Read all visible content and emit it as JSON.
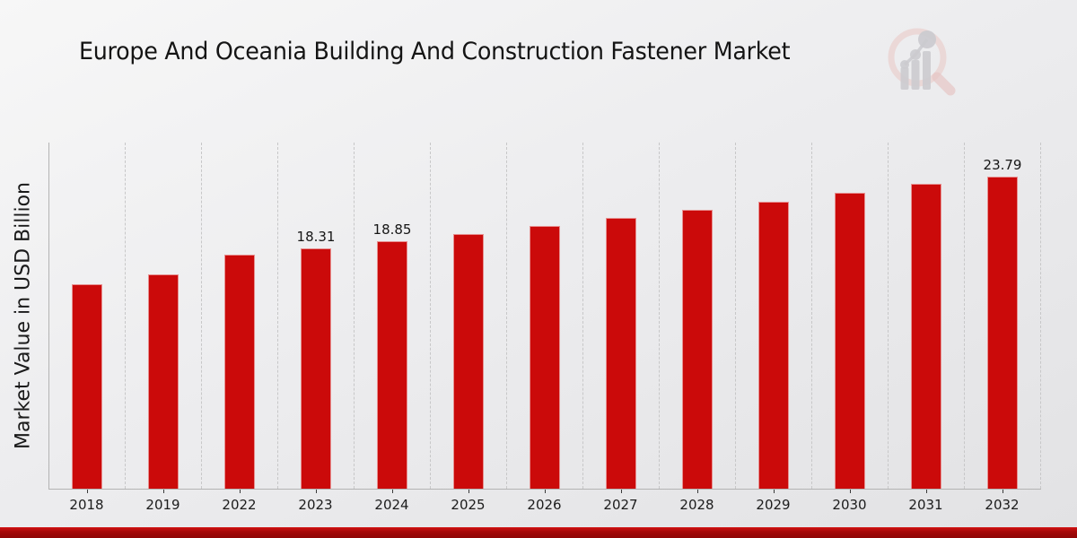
{
  "title": "Europe And Oceania Building And Construction Fastener Market",
  "y_axis_label": "Market Value in USD Billion",
  "logo_name": "market-research-magnifier-logo",
  "chart_data": {
    "type": "bar",
    "title": "Europe And Oceania Building And Construction Fastener Market",
    "xlabel": "",
    "ylabel": "Market Value in USD Billion",
    "categories": [
      "2018",
      "2019",
      "2022",
      "2023",
      "2024",
      "2025",
      "2026",
      "2027",
      "2028",
      "2029",
      "2030",
      "2031",
      "2032"
    ],
    "values": [
      15.6,
      16.33,
      17.83,
      18.31,
      18.85,
      19.45,
      20.02,
      20.63,
      21.25,
      21.86,
      22.55,
      23.23,
      23.79
    ],
    "data_labels": [
      "",
      "",
      "",
      "18.31",
      "18.85",
      "",
      "",
      "",
      "",
      "",
      "",
      "",
      "23.79"
    ],
    "ylim": [
      0,
      26.4
    ],
    "grid": "vertical-dashed",
    "legend": "none",
    "bar_color": "#cb0a0a"
  },
  "colors": {
    "bar": "#cb0a0a",
    "bar_edge": "rgba(255,255,255,0.55)",
    "band_top": "#d31212",
    "band_mid": "#a50808",
    "band_bottom": "#8e0505",
    "axis_line": "#b3b3b3",
    "gridline": "#c7c7c8",
    "logo_ring_pink": "#eaccca",
    "logo_gray": "#c6c5ca"
  }
}
